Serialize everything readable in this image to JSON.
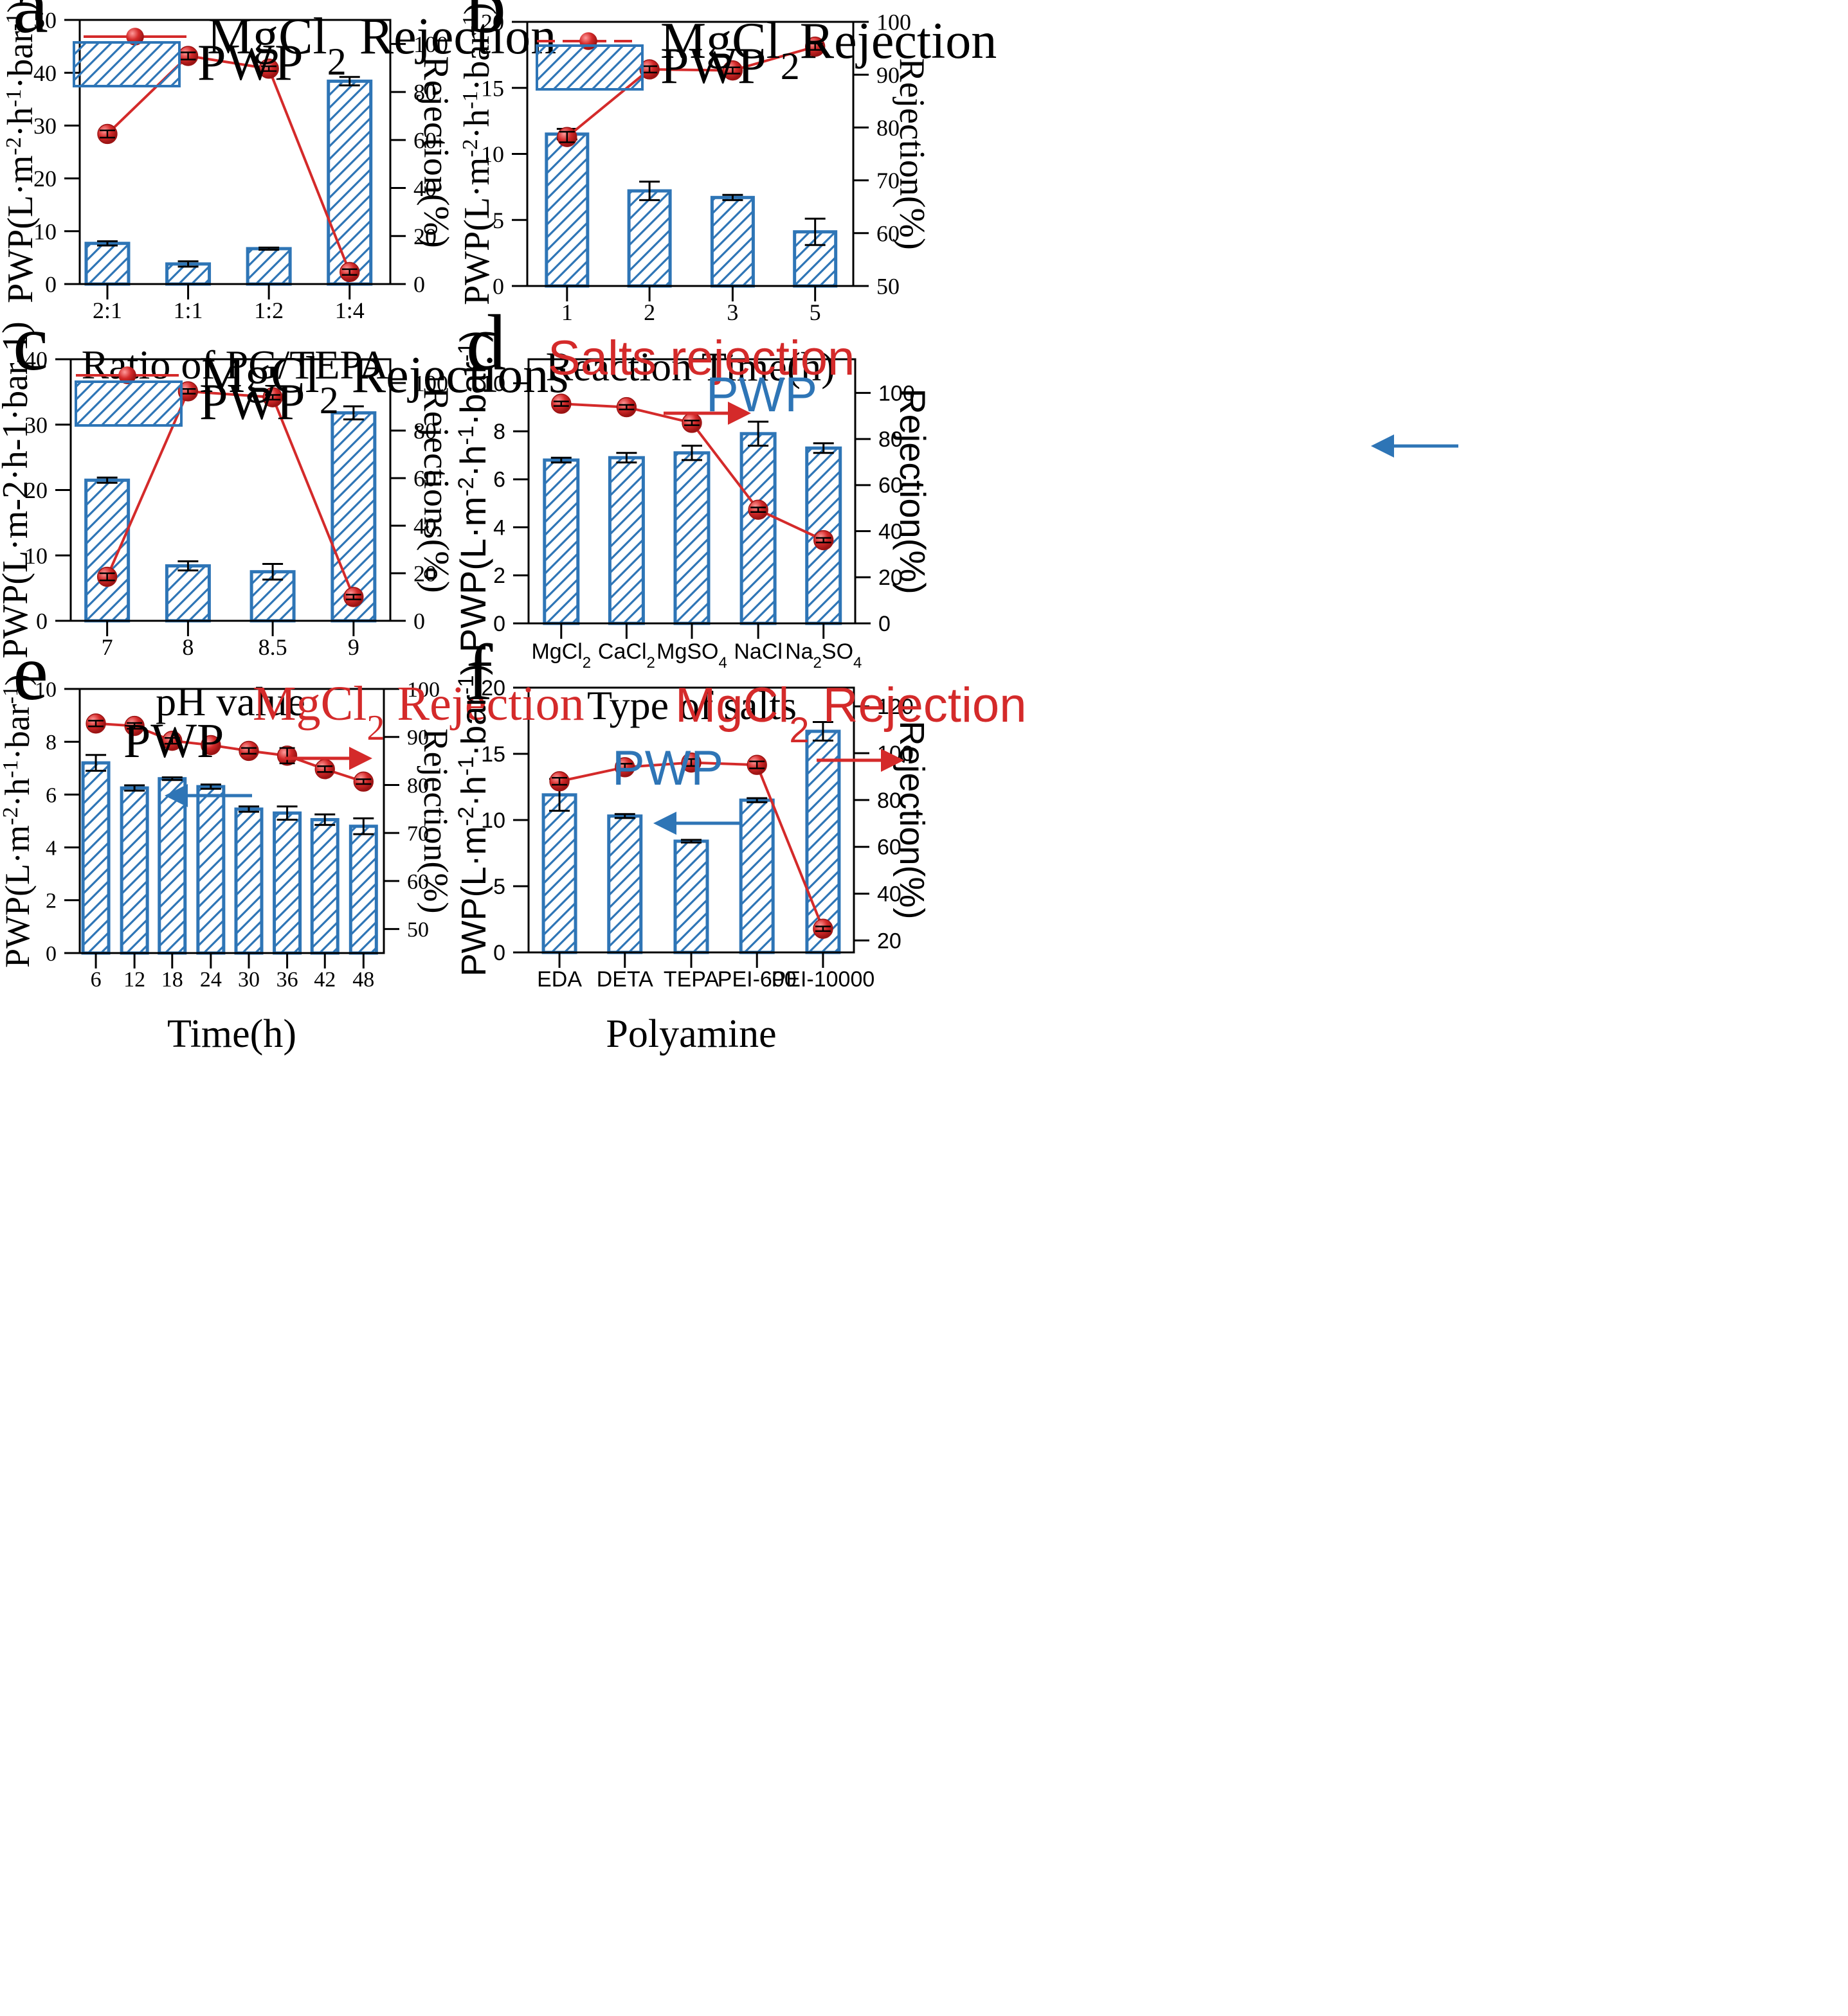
{
  "figure": {
    "title": "PWP and salt rejection of membranes under different preparation and test conditions",
    "colors": {
      "bar_edge": "#2e75b6",
      "line": "#d42a2a",
      "marker": "#d42a2a",
      "axis": "#000000",
      "error_bar": "#000000"
    }
  },
  "chart_data": [
    {
      "type": "bar",
      "panel": "a",
      "xlabel": "Ratio of PG/TEPA",
      "ylabel": "PWP(L·m-2·h-1·bar-1)",
      "ylabel_style": "serif_sup",
      "y2label": "Rejection(%)",
      "ylim": [
        0,
        50
      ],
      "y_ticks": [
        0,
        10,
        20,
        30,
        40,
        50
      ],
      "y2lim": [
        0,
        110
      ],
      "y2_ticks": [
        0,
        20,
        40,
        60,
        80,
        100
      ],
      "categories": [
        "2:1",
        "1:1",
        "1:2",
        "1:4"
      ],
      "series": [
        {
          "name": "PWP",
          "kind": "bar",
          "axis": "left",
          "values": [
            7.7,
            3.8,
            6.7,
            38.4
          ],
          "errors": [
            0.4,
            0.5,
            0.2,
            0.8
          ]
        },
        {
          "name": "MgCl2 Rejection",
          "kind": "line",
          "axis": "right",
          "values": [
            62.5,
            95.0,
            89.7,
            5.0
          ],
          "errors": [
            1.5,
            1.5,
            1.0,
            1.2
          ]
        }
      ],
      "legend": {
        "placement": "top-left",
        "font": "serif",
        "line": {
          "pre": "MgCl",
          "sub": "2",
          "post": " Rejection"
        },
        "bar": {
          "text": "PWP"
        }
      }
    },
    {
      "type": "bar",
      "panel": "b",
      "xlabel": "Reaction Time(h)",
      "ylabel": "PWP(L·m-2·h-1·bar-1)",
      "ylabel_style": "serif_sup",
      "y2label": "Rejection(%)",
      "ylim": [
        0,
        20
      ],
      "y_ticks": [
        0,
        5,
        10,
        15,
        20
      ],
      "y2lim": [
        50,
        100
      ],
      "y2_ticks": [
        50,
        60,
        70,
        80,
        90,
        100
      ],
      "categories": [
        "1",
        "2",
        "3",
        "5"
      ],
      "series": [
        {
          "name": "PWP",
          "kind": "bar",
          "axis": "left",
          "values": [
            11.5,
            7.2,
            6.7,
            4.1
          ],
          "errors": [
            0.4,
            0.7,
            0.2,
            1.0
          ]
        },
        {
          "name": "MgCl2Rejection",
          "kind": "line",
          "axis": "right",
          "values": [
            78.2,
            91.0,
            90.8,
            95.3
          ],
          "errors": [
            1.0,
            0.6,
            0.6,
            0.6
          ]
        }
      ],
      "legend": {
        "placement": "top-left",
        "font": "serif",
        "dashed": true,
        "line": {
          "pre": "MgCl",
          "sub": "2",
          "post": "Rejection"
        },
        "bar": {
          "text": "PWP"
        }
      }
    },
    {
      "type": "bar",
      "panel": "c",
      "xlabel": "pH value",
      "ylabel": "PWP(L·m-2·h-1·bar-1)",
      "ylabel_style": "serif_plain",
      "y2label": "Rejections(%)",
      "ylim": [
        0,
        40
      ],
      "y_ticks": [
        0,
        10,
        20,
        30,
        40
      ],
      "y2lim": [
        0,
        110
      ],
      "y2_ticks": [
        0,
        20,
        40,
        60,
        80,
        100
      ],
      "categories": [
        "7",
        "8",
        "8.5",
        "9"
      ],
      "series": [
        {
          "name": "PWP",
          "kind": "bar",
          "axis": "left",
          "values": [
            21.5,
            8.4,
            7.5,
            31.8
          ],
          "errors": [
            0.4,
            0.7,
            1.2,
            1.0
          ]
        },
        {
          "name": "MgCl2 Rejections",
          "kind": "line",
          "axis": "right",
          "values": [
            18.5,
            96.5,
            94.0,
            10.0
          ],
          "errors": [
            1.5,
            1.0,
            1.0,
            1.0
          ]
        }
      ],
      "legend": {
        "placement": "top-left",
        "font": "serif",
        "line": {
          "pre": "MgCl",
          "sub": "2",
          "post": " Rejections"
        },
        "bar": {
          "text": "PWP"
        }
      }
    },
    {
      "type": "bar",
      "panel": "d",
      "xlabel": "Type of salts",
      "ylabel": "PWP(L·m-2·h-1·bar-1)",
      "ylabel_style": "sans_sup",
      "y2label": "Rejection(%)",
      "ylim": [
        0,
        11
      ],
      "y_ticks": [
        0,
        2,
        4,
        6,
        8,
        10
      ],
      "y2lim": [
        0,
        114.6
      ],
      "y2_ticks": [
        0,
        20,
        40,
        60,
        80,
        100
      ],
      "categories": [
        "MgCl2",
        "CaCl2",
        "MgSO4",
        "NaCl",
        "Na2SO4"
      ],
      "category_labels": [
        {
          "pre": "MgCl",
          "sub": "2",
          "mid": "",
          "sub2": ""
        },
        {
          "pre": "CaCl",
          "sub": "2",
          "mid": "",
          "sub2": ""
        },
        {
          "pre": "MgSO",
          "sub": "4",
          "mid": "",
          "sub2": ""
        },
        {
          "pre": "NaCl",
          "sub": "",
          "mid": "",
          "sub2": ""
        },
        {
          "pre": "Na",
          "sub": "2",
          "mid": "SO",
          "sub2": "4"
        }
      ],
      "series": [
        {
          "name": "PWP",
          "kind": "bar",
          "axis": "left",
          "values": [
            6.8,
            6.9,
            7.1,
            7.9,
            7.3
          ],
          "errors": [
            0.1,
            0.2,
            0.3,
            0.5,
            0.2
          ]
        },
        {
          "name": "Salts rejection",
          "kind": "line",
          "axis": "right",
          "values": [
            95.3,
            93.8,
            87.0,
            49.3,
            36.1
          ],
          "errors": [
            1.0,
            1.0,
            1.0,
            1.0,
            1.0
          ]
        }
      ],
      "annotations": [
        {
          "text": "Salts rejection",
          "color": "#d42a2a",
          "arrow": "right"
        },
        {
          "text": "PWP",
          "color": "#2e75b6",
          "arrow": "left"
        }
      ]
    },
    {
      "type": "bar",
      "panel": "e",
      "xlabel": "Time(h)",
      "ylabel": "PWP(L·m-2·h-1·bar-1)",
      "ylabel_style": "serif_sup",
      "y2label": "Rejection(%)",
      "ylim": [
        0,
        10
      ],
      "y_ticks": [
        0,
        2,
        4,
        6,
        8,
        10
      ],
      "y2lim": [
        45,
        100
      ],
      "y2_ticks": [
        50,
        60,
        70,
        80,
        90,
        100
      ],
      "categories": [
        "6",
        "12",
        "18",
        "24",
        "30",
        "36",
        "42",
        "48"
      ],
      "series": [
        {
          "name": "PWP",
          "kind": "bar",
          "axis": "left",
          "values": [
            7.2,
            6.25,
            6.6,
            6.3,
            5.45,
            5.3,
            5.05,
            4.8
          ],
          "errors": [
            0.3,
            0.1,
            0.05,
            0.08,
            0.1,
            0.25,
            0.2,
            0.3
          ]
        },
        {
          "name": "MgCl2 Rejection",
          "kind": "line",
          "axis": "right",
          "values": [
            92.8,
            92.3,
            89.2,
            88.3,
            87.1,
            86.1,
            83.3,
            80.7
          ],
          "errors": [
            0.6,
            0.6,
            0.6,
            0,
            0.6,
            1.6,
            0.6,
            0.5
          ]
        }
      ],
      "annotations": [
        {
          "text": "PWP",
          "color": "#000000",
          "arrow": "left"
        },
        {
          "pre": "MgCl",
          "sub": "2",
          "post": " Rejection",
          "color": "#d42a2a",
          "arrow": "right"
        }
      ]
    },
    {
      "type": "bar",
      "panel": "f",
      "xlabel": "Polyamine",
      "ylabel": "PWP(L·m-2·h-1·bar-1)",
      "ylabel_style": "sans_sup",
      "y2label": "Rejection(%)",
      "ylim": [
        0,
        20
      ],
      "y_ticks": [
        0,
        5,
        10,
        15,
        20
      ],
      "y2lim": [
        14.9,
        128
      ],
      "y2_ticks": [
        20,
        40,
        60,
        80,
        100,
        120
      ],
      "categories": [
        "EDA",
        "DETA",
        "TEPA",
        "PEI-600",
        "PEI-10000"
      ],
      "series": [
        {
          "name": "PWP",
          "kind": "bar",
          "axis": "left",
          "values": [
            11.9,
            10.3,
            8.4,
            11.5,
            16.7
          ],
          "errors": [
            1.2,
            0.15,
            0.1,
            0.15,
            0.7
          ]
        },
        {
          "name": "MgCl2 Rejection",
          "kind": "line",
          "axis": "right",
          "values": [
            88.0,
            94.0,
            96.0,
            95.0,
            25.0
          ],
          "errors": [
            1.5,
            1.5,
            1.5,
            1.5,
            1.0
          ]
        }
      ],
      "annotations": [
        {
          "text": "PWP",
          "color": "#2e75b6",
          "arrow": "left"
        },
        {
          "pre": "MgCl",
          "sub": "2",
          "post": " Rejection",
          "color": "#d42a2a",
          "arrow": "right"
        }
      ]
    }
  ]
}
